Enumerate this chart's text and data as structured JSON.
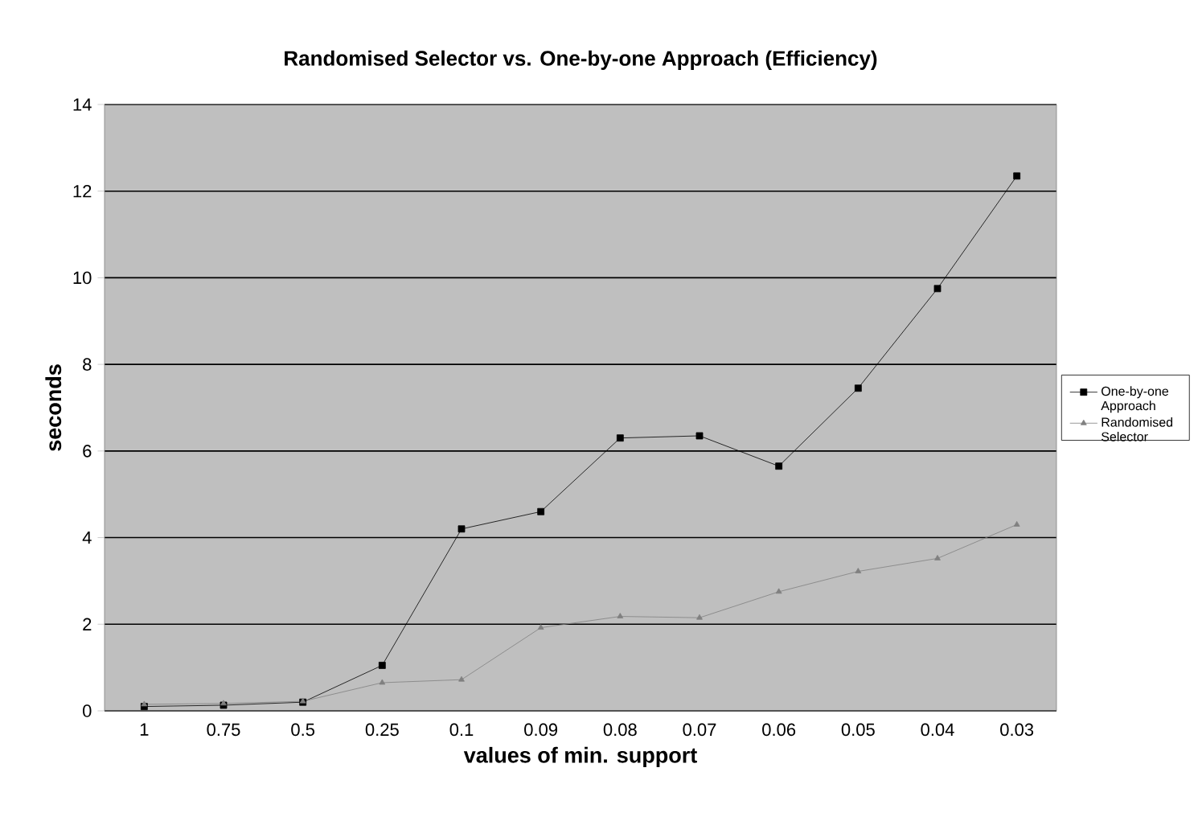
{
  "chart_data": {
    "type": "line",
    "title": "Randomised Selector vs. One-by-one Approach (Efficiency)",
    "xlabel": "values of min. support",
    "ylabel": "seconds",
    "categories": [
      "1",
      "0.75",
      "0.5",
      "0.25",
      "0.1",
      "0.09",
      "0.08",
      "0.07",
      "0.06",
      "0.05",
      "0.04",
      "0.03"
    ],
    "series": [
      {
        "name": "One-by-one Approach",
        "color": "#000000",
        "marker": "square",
        "values": [
          0.1,
          0.13,
          0.2,
          1.05,
          4.2,
          4.6,
          6.3,
          6.35,
          5.65,
          7.45,
          9.75,
          12.35
        ]
      },
      {
        "name": "Randomised Selector",
        "color": "#808080",
        "marker": "triangle",
        "values": [
          0.15,
          0.17,
          0.22,
          0.65,
          0.72,
          1.92,
          2.18,
          2.15,
          2.75,
          3.22,
          3.52,
          4.3
        ]
      }
    ],
    "ylim": [
      0,
      14
    ],
    "yticks": [
      0,
      2,
      4,
      6,
      8,
      10,
      12,
      14
    ],
    "grid": "y",
    "legend": "right",
    "line_style": "solid"
  }
}
